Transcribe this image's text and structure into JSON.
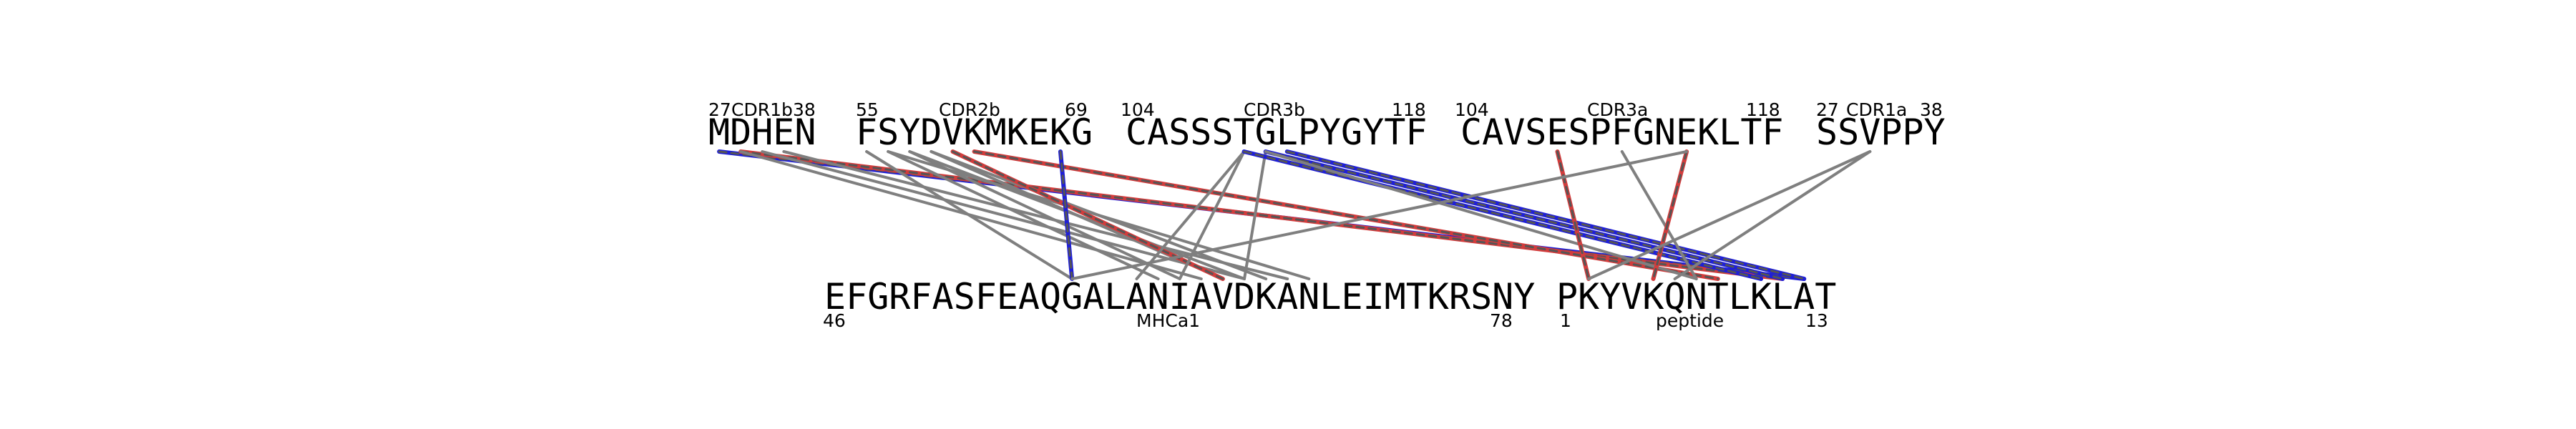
{
  "segments": [
    {
      "id": "cdr1b",
      "sequence": "MDHEN",
      "label": "CDR1b",
      "start": "27",
      "end": "38"
    },
    {
      "id": "cdr2b",
      "sequence": "FSYDVKMKEKG",
      "label": "CDR2b",
      "start": "55",
      "end": "69"
    },
    {
      "id": "cdr3b",
      "sequence": "CASSSTGLPYGYTF",
      "label": "CDR3b",
      "start": "104",
      "end": "118"
    },
    {
      "id": "cdr3a",
      "sequence": "CAVSESPFGNEKLTF",
      "label": "CDR3a",
      "start": "104",
      "end": "118"
    },
    {
      "id": "cdr1a",
      "sequence": "SSVPPY",
      "label": "CDR1a",
      "start": "27",
      "end": "38"
    },
    {
      "id": "mhca1",
      "sequence": "EFGRFASFEAQGALANIAVDKANLEIMTKRSNY",
      "label": "MHCa1",
      "start": "46",
      "end": "78"
    },
    {
      "id": "peptide",
      "sequence": "PKYVKQNTLKLAT",
      "label": "peptide",
      "start": "1",
      "end": "13"
    }
  ],
  "contacts": [
    {
      "from": "cdr1b",
      "fi": 0,
      "to": "peptide",
      "ti": 11,
      "style": "hb"
    },
    {
      "from": "cdr1b",
      "fi": 1,
      "to": "peptide",
      "ti": 10,
      "style": "salt"
    },
    {
      "from": "cdr1b",
      "fi": 1,
      "to": "mhca1",
      "ti": 17,
      "style": "gray"
    },
    {
      "from": "cdr1b",
      "fi": 2,
      "to": "mhca1",
      "ti": 19,
      "style": "gray"
    },
    {
      "from": "cdr1b",
      "fi": 3,
      "to": "mhca1",
      "ti": 21,
      "style": "gray"
    },
    {
      "from": "cdr2b",
      "fi": 0,
      "to": "mhca1",
      "ti": 11,
      "style": "gray"
    },
    {
      "from": "cdr2b",
      "fi": 1,
      "to": "mhca1",
      "ti": 15,
      "style": "gray"
    },
    {
      "from": "cdr2b",
      "fi": 2,
      "to": "mhca1",
      "ti": 16,
      "style": "gray"
    },
    {
      "from": "cdr2b",
      "fi": 3,
      "to": "mhca1",
      "ti": 18,
      "style": "gray"
    },
    {
      "from": "cdr2b",
      "fi": 2,
      "to": "mhca1",
      "ti": 19,
      "style": "gray"
    },
    {
      "from": "cdr2b",
      "fi": 3,
      "to": "mhca1",
      "ti": 20,
      "style": "gray"
    },
    {
      "from": "cdr2b",
      "fi": 1,
      "to": "mhca1",
      "ti": 22,
      "style": "gray"
    },
    {
      "from": "cdr2b",
      "fi": 4,
      "to": "mhca1",
      "ti": 18,
      "style": "salt"
    },
    {
      "from": "cdr2b",
      "fi": 5,
      "to": "peptide",
      "ti": 7,
      "style": "salt"
    },
    {
      "from": "cdr2b",
      "fi": 9,
      "to": "mhca1",
      "ti": 11,
      "style": "hb"
    },
    {
      "from": "cdr3b",
      "fi": 5,
      "to": "mhca1",
      "ti": 14,
      "style": "gray"
    },
    {
      "from": "cdr3b",
      "fi": 5,
      "to": "mhca1",
      "ti": 16,
      "style": "gray"
    },
    {
      "from": "cdr3b",
      "fi": 6,
      "to": "mhca1",
      "ti": 19,
      "style": "gray"
    },
    {
      "from": "cdr3b",
      "fi": 5,
      "to": "peptide",
      "ti": 9,
      "style": "hb"
    },
    {
      "from": "cdr3b",
      "fi": 6,
      "to": "peptide",
      "ti": 10,
      "style": "hb"
    },
    {
      "from": "cdr3b",
      "fi": 7,
      "to": "peptide",
      "ti": 11,
      "style": "hb"
    },
    {
      "from": "cdr3b",
      "fi": 6,
      "to": "peptide",
      "ti": 6,
      "style": "gray"
    },
    {
      "from": "cdr3a",
      "fi": 4,
      "to": "peptide",
      "ti": 1,
      "style": "salt"
    },
    {
      "from": "cdr3a",
      "fi": 7,
      "to": "peptide",
      "ti": 6,
      "style": "gray"
    },
    {
      "from": "cdr3a",
      "fi": 10,
      "to": "peptide",
      "ti": 4,
      "style": "salt"
    },
    {
      "from": "cdr3a",
      "fi": 10,
      "to": "mhca1",
      "ti": 11,
      "style": "gray"
    },
    {
      "from": "cdr1a",
      "fi": 2,
      "to": "peptide",
      "ti": 1,
      "style": "gray"
    },
    {
      "from": "cdr1a",
      "fi": 2,
      "to": "peptide",
      "ti": 5,
      "style": "gray"
    }
  ]
}
